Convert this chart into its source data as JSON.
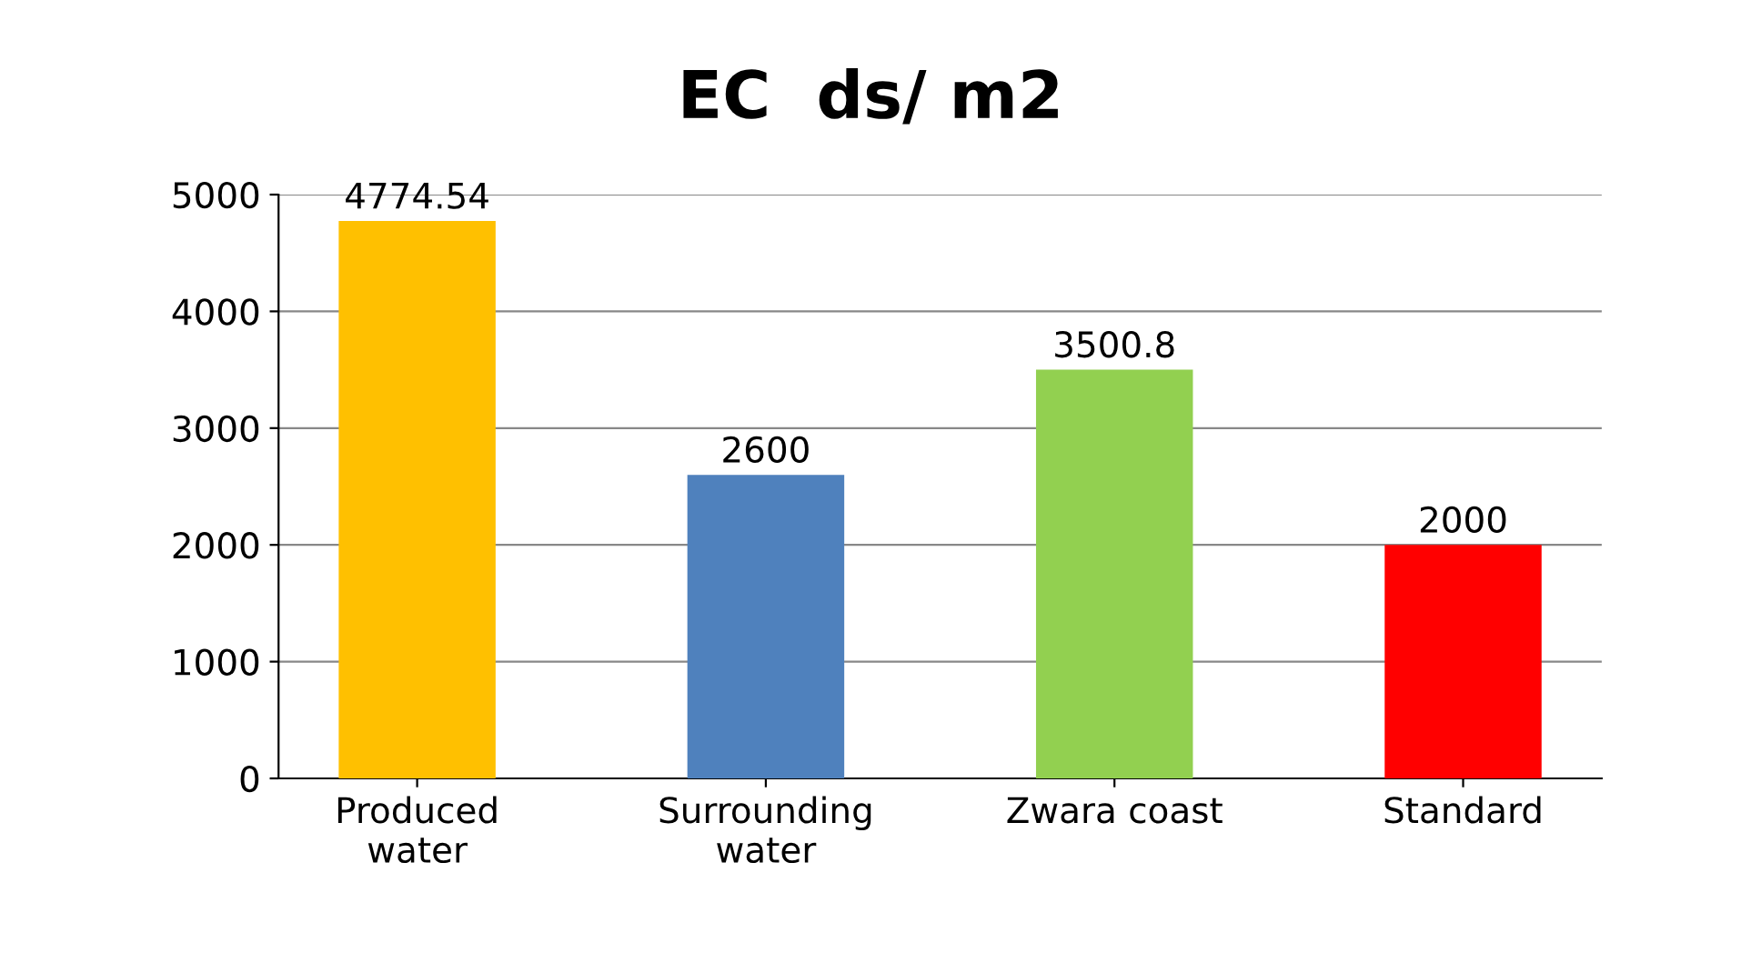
{
  "chart_data": {
    "type": "bar",
    "title": "EC  ds/ m2",
    "categories": [
      "Produced\nwater",
      "Surrounding\nwater",
      "Zwara coast",
      "Standard"
    ],
    "values": [
      4774.54,
      2600,
      3500.8,
      2000
    ],
    "colors": [
      "#ffc000",
      "#4f81bd",
      "#92d050",
      "#ff0000"
    ],
    "ylim": [
      0,
      5000
    ],
    "yticks": [
      0,
      1000,
      2000,
      3000,
      4000,
      5000
    ],
    "grid": "y",
    "data_labels": true
  }
}
